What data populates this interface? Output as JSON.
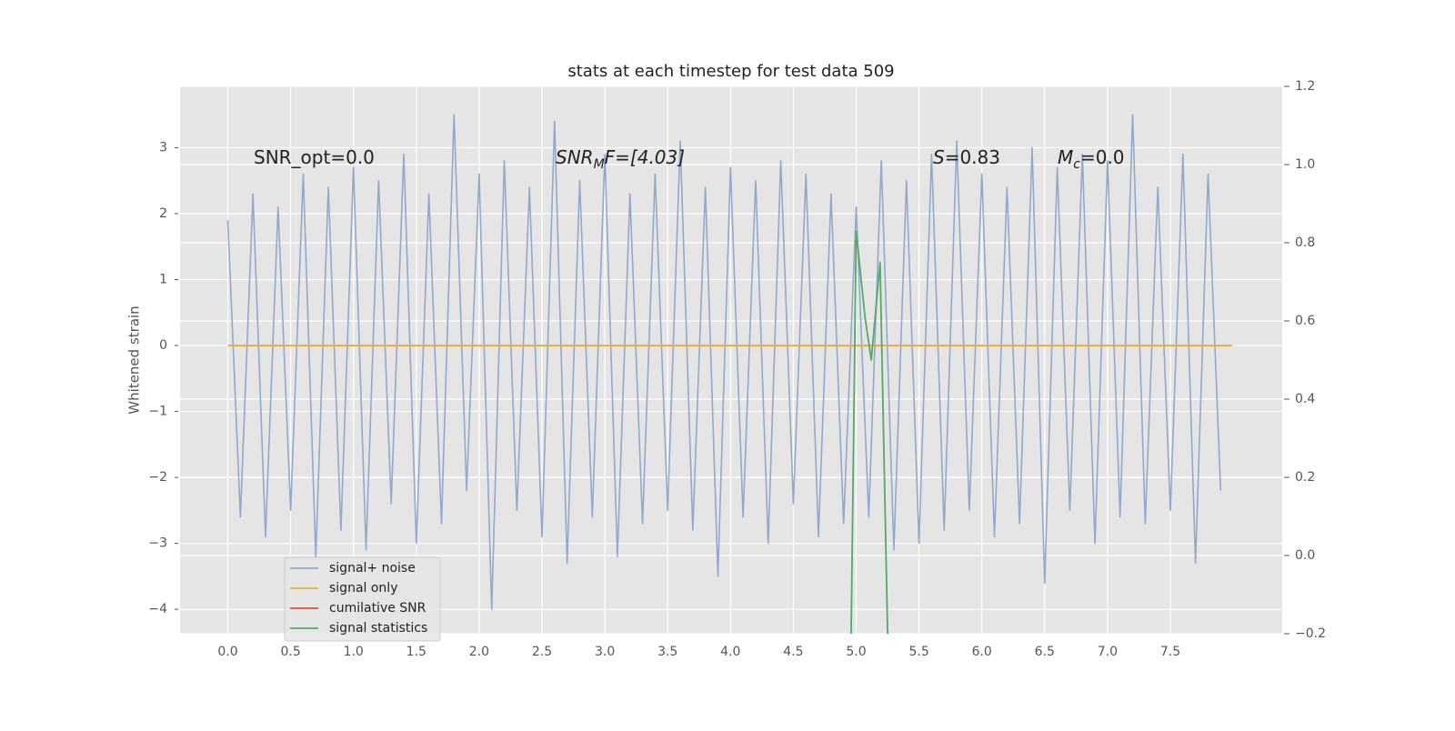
{
  "chart_data": {
    "type": "line",
    "title": "stats at each timestep for test data 509",
    "ylabel": "Whitened strain",
    "background": "#e5e5e5",
    "grid": true,
    "legend": "lower left",
    "xlim": [
      -0.38,
      8.39
    ],
    "ylim": [
      -4.37,
      3.93
    ],
    "y2lim": [
      -0.2,
      1.2
    ],
    "xticks": [
      {
        "value": 0,
        "label": "0.0"
      },
      {
        "value": 0.5,
        "label": "0.5"
      },
      {
        "value": 1,
        "label": "1.0"
      },
      {
        "value": 1.5,
        "label": "1.5"
      },
      {
        "value": 2,
        "label": "2.0"
      },
      {
        "value": 2.5,
        "label": "2.5"
      },
      {
        "value": 3,
        "label": "3.0"
      },
      {
        "value": 3.5,
        "label": "3.5"
      },
      {
        "value": 4,
        "label": "4.0"
      },
      {
        "value": 4.5,
        "label": "4.5"
      },
      {
        "value": 5,
        "label": "5.0"
      },
      {
        "value": 5.5,
        "label": "5.5"
      },
      {
        "value": 6,
        "label": "6.0"
      },
      {
        "value": 6.5,
        "label": "6.5"
      },
      {
        "value": 7,
        "label": "7.0"
      },
      {
        "value": 7.5,
        "label": "7.5"
      }
    ],
    "yticks": [
      {
        "value": -4,
        "label": "−4"
      },
      {
        "value": -3,
        "label": "−3"
      },
      {
        "value": -2,
        "label": "−2"
      },
      {
        "value": -1,
        "label": "−1"
      },
      0,
      1,
      2,
      3
    ],
    "y2ticks": [
      {
        "value": -0.2,
        "label": "−0.2"
      },
      {
        "value": 0,
        "label": "0.0"
      },
      0.2,
      0.4,
      0.6,
      0.8,
      {
        "value": 1,
        "label": "1.0"
      },
      1.2
    ],
    "annotations": [
      {
        "base": "SNR_opt=0.0"
      },
      {
        "base": "SNR",
        "sub": "M",
        "rest": "F=[4.03]"
      },
      {
        "base": "S",
        "rest": "=0.83"
      },
      {
        "base": "M",
        "sub": "c",
        "rest": "=0.0"
      }
    ],
    "series": [
      {
        "name": "signal+ noise",
        "color": "#92a8cd",
        "x": [
          0.0,
          0.1,
          0.2,
          0.3,
          0.4,
          0.5,
          0.6,
          0.7,
          0.8,
          0.9,
          1.0,
          1.1,
          1.2,
          1.3,
          1.4,
          1.5,
          1.6,
          1.7,
          1.8,
          1.9,
          2.0,
          2.1,
          2.2,
          2.3,
          2.4,
          2.5,
          2.6,
          2.7,
          2.8,
          2.9,
          3.0,
          3.1,
          3.2,
          3.3,
          3.4,
          3.5,
          3.6,
          3.7,
          3.8,
          3.9,
          4.0,
          4.1,
          4.2,
          4.3,
          4.4,
          4.5,
          4.6,
          4.7,
          4.8,
          4.9,
          5.0,
          5.1,
          5.2,
          5.3,
          5.4,
          5.5,
          5.6,
          5.7,
          5.8,
          5.9,
          6.0,
          6.1,
          6.2,
          6.3,
          6.4,
          6.5,
          6.6,
          6.7,
          6.8,
          6.9,
          7.0,
          7.1,
          7.2,
          7.3,
          7.4,
          7.5,
          7.6,
          7.7,
          7.8,
          7.9
        ],
        "values": [
          1.9,
          -2.6,
          2.3,
          -2.9,
          2.1,
          -2.5,
          2.6,
          -3.2,
          2.4,
          -2.8,
          2.7,
          -3.1,
          2.5,
          -2.4,
          2.9,
          -3.0,
          2.3,
          -2.7,
          3.5,
          -2.2,
          2.6,
          -4.0,
          2.8,
          -2.5,
          2.4,
          -2.9,
          3.4,
          -3.3,
          2.5,
          -2.6,
          2.9,
          -3.2,
          2.3,
          -2.7,
          2.6,
          -2.5,
          3.1,
          -2.8,
          2.4,
          -3.5,
          2.7,
          -2.6,
          2.5,
          -3.0,
          2.8,
          -2.4,
          2.6,
          -2.9,
          2.3,
          -2.7,
          2.1,
          -2.6,
          2.8,
          -3.1,
          2.5,
          -3.0,
          2.9,
          -2.8,
          3.1,
          -2.5,
          2.6,
          -2.9,
          2.4,
          -2.7,
          3.0,
          -3.6,
          2.7,
          -2.5,
          2.9,
          -3.0,
          2.8,
          -2.6,
          3.5,
          -2.7,
          2.4,
          -2.5,
          2.9,
          -3.3,
          2.6,
          -2.2
        ]
      },
      {
        "name": "signal only",
        "color": "#e5ae38",
        "x": [
          0,
          7.99
        ],
        "values": [
          0,
          0
        ]
      },
      {
        "name": "cumilative SNR",
        "color": "#e24a33",
        "x": [],
        "values": []
      },
      {
        "name": "signal statistics",
        "color": "#55a868",
        "axis": "y2",
        "x": [
          4.96,
          5.0,
          5.07,
          5.12,
          5.19,
          5.25
        ],
        "values": [
          -0.2,
          0.83,
          0.61,
          0.5,
          0.75,
          -0.2
        ]
      }
    ]
  }
}
